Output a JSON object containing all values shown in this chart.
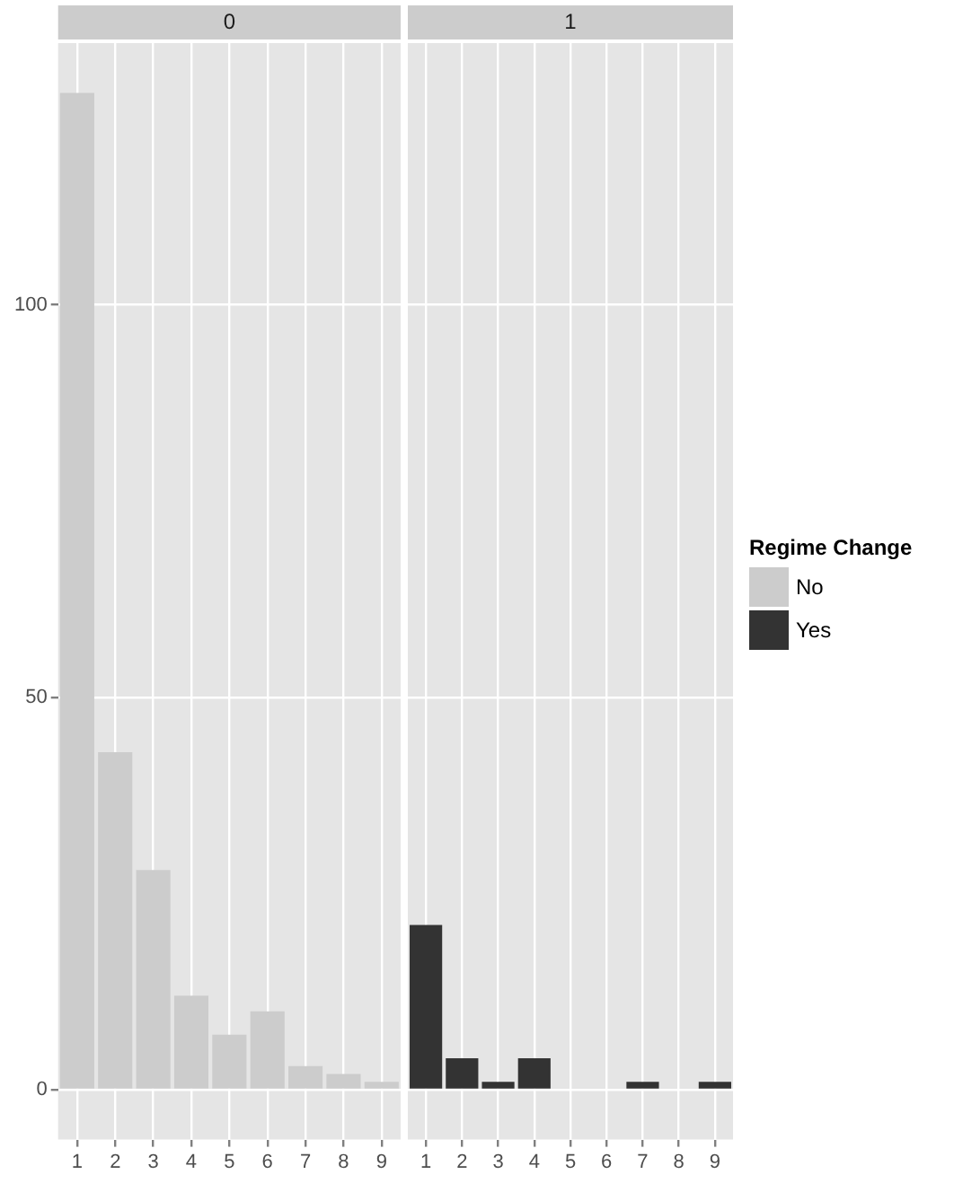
{
  "chart_data": [
    {
      "type": "bar",
      "title": "0",
      "categories": [
        "1",
        "2",
        "3",
        "4",
        "5",
        "6",
        "7",
        "8",
        "9"
      ],
      "series": [
        {
          "color": "#cccccc",
          "values": [
            127,
            43,
            28,
            12,
            7,
            10,
            3,
            2,
            1
          ]
        }
      ],
      "ylim": [
        -6.35,
        133.35
      ],
      "yticks": [
        0,
        50,
        100
      ],
      "grid": true,
      "legend": false
    },
    {
      "type": "bar",
      "title": "1",
      "categories": [
        "1",
        "2",
        "3",
        "4",
        "5",
        "6",
        "7",
        "8",
        "9"
      ],
      "series": [
        {
          "name": "No",
          "color": "#cccccc",
          "values": [
            null,
            null,
            null,
            null,
            null,
            null,
            null,
            null,
            null
          ]
        },
        {
          "name": "Yes",
          "color": "#333333",
          "values": [
            21,
            4,
            1,
            4,
            null,
            null,
            1,
            null,
            1
          ]
        }
      ],
      "ylim": [
        -6.35,
        133.35
      ],
      "yticks": [
        0,
        50,
        100
      ],
      "grid": true,
      "tick_labels": "x",
      "legend": "right",
      "legend_title": "Regime Change"
    }
  ]
}
